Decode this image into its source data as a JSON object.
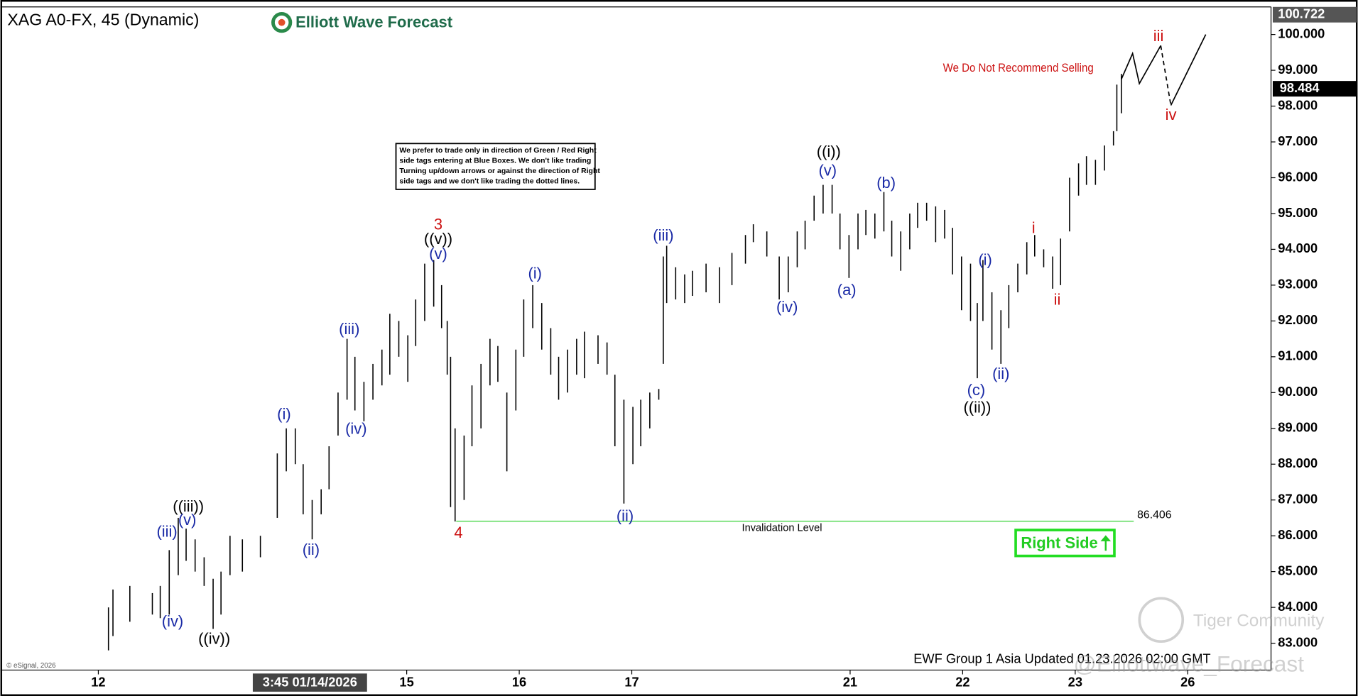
{
  "chart_data": {
    "type": "ohlc",
    "title": "XAG A0-FX, 45 (Dynamic)",
    "logo": "Elliott Wave Forecast",
    "notice": [
      "We prefer to trade only in direction of Green / Red Right",
      "side tags entering at Blue Boxes. We don't like trading",
      "Turning up/down arrows or against the direction of Right",
      "side tags and we don't like trading the dotted lines."
    ],
    "warning": "We Do Not Recommend Selling",
    "right_side": "Right Side",
    "footer": "EWF Group 1 Asia Updated 01.23.2026 02:00 GMT",
    "copyright": "© eSignal, 2026",
    "watermarks": [
      "Tiger Community",
      "@Elliottwave_Forecast"
    ],
    "color": "#000000",
    "xlim": [
      -0.87,
      10.42
    ],
    "ylim": [
      82.25,
      100.77
    ],
    "xticks": [
      {
        "value": 0,
        "label": "12"
      },
      {
        "value": 2.74,
        "label": "15"
      },
      {
        "value": 3.74,
        "label": "16"
      },
      {
        "value": 4.74,
        "label": "17"
      },
      {
        "value": 6.68,
        "label": "21"
      },
      {
        "value": 7.68,
        "label": "22"
      },
      {
        "value": 8.68,
        "label": "23"
      },
      {
        "value": 9.68,
        "label": "26"
      }
    ],
    "crosshair_x": {
      "value": 1.88,
      "label": "3:45 01/14/2026"
    },
    "yticks": [
      {
        "value": 83,
        "label": "83.000"
      },
      {
        "value": 84,
        "label": "84.000"
      },
      {
        "value": 85,
        "label": "85.000"
      },
      {
        "value": 86,
        "label": "86.000"
      },
      {
        "value": 87,
        "label": "87.000"
      },
      {
        "value": 88,
        "label": "88.000"
      },
      {
        "value": 89,
        "label": "89.000"
      },
      {
        "value": 90,
        "label": "90.000"
      },
      {
        "value": 91,
        "label": "91.000"
      },
      {
        "value": 92,
        "label": "92.000"
      },
      {
        "value": 93,
        "label": "93.000"
      },
      {
        "value": 94,
        "label": "94.000"
      },
      {
        "value": 95,
        "label": "95.000"
      },
      {
        "value": 96,
        "label": "96.000"
      },
      {
        "value": 97,
        "label": "97.000"
      },
      {
        "value": 98,
        "label": "98.000"
      },
      {
        "value": 99,
        "label": "99.000"
      },
      {
        "value": 100,
        "label": "100.000"
      }
    ],
    "high_marker": 100.722,
    "last_price": 98.484,
    "x": [
      0.09,
      0.13,
      0.28,
      0.48,
      0.55,
      0.63,
      0.71,
      0.78,
      0.86,
      0.94,
      1.02,
      1.09,
      1.17,
      1.28,
      1.44,
      1.59,
      1.67,
      1.75,
      1.82,
      1.9,
      1.98,
      2.05,
      2.13,
      2.21,
      2.28,
      2.36,
      2.44,
      2.52,
      2.59,
      2.67,
      2.75,
      2.82,
      2.9,
      2.98,
      3.05,
      3.1,
      3.13,
      3.17,
      3.25,
      3.32,
      3.4,
      3.48,
      3.55,
      3.63,
      3.71,
      3.78,
      3.86,
      3.94,
      4.02,
      4.09,
      4.17,
      4.25,
      4.32,
      4.44,
      4.52,
      4.59,
      4.67,
      4.75,
      4.82,
      4.9,
      4.98,
      5.02,
      5.05,
      5.13,
      5.21,
      5.28,
      5.4,
      5.52,
      5.63,
      5.75,
      5.82,
      5.94,
      6.05,
      6.13,
      6.21,
      6.28,
      6.36,
      6.44,
      6.52,
      6.59,
      6.67,
      6.75,
      6.82,
      6.9,
      6.98,
      7.05,
      7.13,
      7.21,
      7.28,
      7.36,
      7.44,
      7.52,
      7.59,
      7.67,
      7.75,
      7.81,
      7.86,
      7.94,
      8.02,
      8.09,
      8.17,
      8.25,
      8.32,
      8.4,
      8.48,
      8.55,
      8.63,
      8.71,
      8.78,
      8.86,
      8.94,
      9.02,
      9.05,
      9.09
    ],
    "low": [
      82.8,
      83.2,
      83.6,
      83.8,
      83.7,
      83.8,
      84.9,
      85.3,
      85.0,
      84.6,
      83.4,
      83.8,
      84.9,
      85.0,
      85.4,
      86.5,
      87.8,
      88.0,
      86.6,
      85.9,
      86.6,
      87.3,
      88.8,
      89.8,
      89.5,
      89.2,
      89.8,
      90.2,
      90.5,
      91.0,
      90.3,
      91.3,
      92.0,
      92.4,
      91.8,
      90.5,
      86.8,
      86.4,
      87.0,
      88.5,
      89.0,
      90.2,
      90.3,
      87.8,
      89.5,
      91.0,
      91.8,
      91.2,
      90.5,
      89.8,
      90.0,
      90.5,
      90.4,
      90.8,
      90.5,
      88.5,
      86.9,
      88.0,
      88.5,
      89.0,
      89.8,
      90.8,
      92.5,
      92.6,
      92.5,
      92.7,
      92.8,
      92.5,
      93.0,
      93.6,
      94.2,
      93.8,
      92.6,
      92.8,
      93.5,
      94.0,
      94.8,
      95.0,
      95.0,
      94.0,
      93.2,
      94.0,
      94.4,
      94.3,
      94.5,
      93.8,
      93.4,
      94.0,
      94.6,
      94.8,
      94.2,
      94.3,
      93.3,
      92.3,
      92.0,
      90.4,
      92.0,
      91.2,
      90.8,
      91.8,
      92.8,
      93.3,
      93.8,
      93.5,
      92.9,
      93.0,
      94.5,
      95.5,
      95.8,
      95.8,
      96.2,
      96.9,
      97.3,
      97.8
    ],
    "high": [
      84.0,
      84.5,
      84.6,
      84.4,
      84.6,
      85.6,
      86.5,
      86.2,
      85.9,
      85.4,
      84.8,
      85.0,
      86.0,
      85.9,
      86.0,
      88.3,
      89.0,
      89.0,
      88.0,
      87.0,
      87.3,
      88.5,
      90.0,
      91.5,
      91.0,
      90.3,
      90.8,
      91.2,
      92.2,
      92.0,
      91.6,
      92.6,
      93.6,
      93.7,
      93.0,
      92.0,
      91.0,
      89.0,
      88.8,
      90.2,
      90.8,
      91.5,
      91.3,
      90.0,
      91.2,
      92.6,
      93.0,
      92.5,
      91.8,
      91.0,
      91.2,
      91.5,
      91.7,
      91.6,
      91.4,
      90.5,
      89.8,
      89.6,
      89.8,
      90.0,
      90.1,
      93.8,
      94.1,
      93.5,
      93.3,
      93.4,
      93.6,
      93.5,
      93.9,
      94.4,
      94.7,
      94.5,
      93.8,
      93.8,
      94.5,
      94.8,
      95.5,
      95.8,
      95.8,
      95.0,
      94.4,
      95.0,
      95.1,
      95.0,
      95.6,
      94.8,
      94.5,
      95.0,
      95.3,
      95.3,
      95.2,
      95.1,
      94.6,
      93.8,
      93.6,
      92.5,
      93.7,
      92.8,
      92.3,
      93.0,
      93.6,
      94.2,
      94.4,
      94.0,
      93.8,
      94.3,
      96.0,
      96.4,
      96.6,
      96.5,
      96.9,
      97.3,
      98.6,
      98.9
    ],
    "projections": [
      {
        "x": [
          9.09,
          9.19,
          9.25,
          9.44
        ],
        "values": [
          98.75,
          99.47,
          98.63,
          99.69
        ],
        "dashed": false
      },
      {
        "x": [
          9.44,
          9.53
        ],
        "values": [
          99.69,
          98.02
        ],
        "dashed": true
      },
      {
        "x": [
          9.53,
          9.84
        ],
        "values": [
          98.02,
          100.0
        ],
        "dashed": false
      }
    ],
    "invalidation": {
      "label": "Invalidation Level",
      "value": 86.406,
      "x": [
        3.18,
        9.2
      ],
      "color": "#66dd66"
    },
    "waves": [
      {
        "text": "((iii))",
        "x": 0.8,
        "y": 86.79,
        "color": "#000000"
      },
      {
        "text": "(v)",
        "x": 0.79,
        "y": 86.42,
        "color": "#1a2aa6"
      },
      {
        "text": "(iii)",
        "x": 0.61,
        "y": 86.09,
        "color": "#1a2aa6"
      },
      {
        "text": "(iv)",
        "x": 0.66,
        "y": 83.58,
        "color": "#1a2aa6"
      },
      {
        "text": "((iv))",
        "x": 1.03,
        "y": 83.1,
        "color": "#000000"
      },
      {
        "text": "(i)",
        "x": 1.65,
        "y": 89.37,
        "color": "#1a2aa6"
      },
      {
        "text": "(ii)",
        "x": 1.89,
        "y": 85.58,
        "color": "#1a2aa6"
      },
      {
        "text": "(iii)",
        "x": 2.23,
        "y": 91.75,
        "color": "#1a2aa6"
      },
      {
        "text": "(iv)",
        "x": 2.29,
        "y": 88.96,
        "color": "#1a2aa6"
      },
      {
        "text": "3",
        "x": 3.02,
        "y": 94.67,
        "color": "#cc1111"
      },
      {
        "text": "((v))",
        "x": 3.02,
        "y": 94.26,
        "color": "#000000"
      },
      {
        "text": "(v)",
        "x": 3.02,
        "y": 93.85,
        "color": "#1a2aa6"
      },
      {
        "text": "4",
        "x": 3.2,
        "y": 86.06,
        "color": "#cc1111"
      },
      {
        "text": "(i)",
        "x": 3.88,
        "y": 93.3,
        "color": "#1a2aa6"
      },
      {
        "text": "(ii)",
        "x": 4.68,
        "y": 86.52,
        "color": "#1a2aa6"
      },
      {
        "text": "(iii)",
        "x": 5.02,
        "y": 94.36,
        "color": "#1a2aa6"
      },
      {
        "text": "(iv)",
        "x": 6.12,
        "y": 92.36,
        "color": "#1a2aa6"
      },
      {
        "text": "((i))",
        "x": 6.49,
        "y": 96.7,
        "color": "#000000"
      },
      {
        "text": "(v)",
        "x": 6.48,
        "y": 96.17,
        "color": "#1a2aa6"
      },
      {
        "text": "(a)",
        "x": 6.65,
        "y": 92.84,
        "color": "#1a2aa6"
      },
      {
        "text": "(b)",
        "x": 7.0,
        "y": 95.83,
        "color": "#1a2aa6"
      },
      {
        "text": "(c)",
        "x": 7.8,
        "y": 90.04,
        "color": "#1a2aa6"
      },
      {
        "text": "((ii))",
        "x": 7.81,
        "y": 89.56,
        "color": "#000000"
      },
      {
        "text": "(i)",
        "x": 7.88,
        "y": 93.68,
        "color": "#1a2aa6"
      },
      {
        "text": "(ii)",
        "x": 8.02,
        "y": 90.5,
        "color": "#1a2aa6"
      },
      {
        "text": "i",
        "x": 8.31,
        "y": 94.57,
        "color": "#cc1111"
      },
      {
        "text": "ii",
        "x": 8.52,
        "y": 92.57,
        "color": "#cc1111"
      },
      {
        "text": "iii",
        "x": 9.42,
        "y": 99.93,
        "color": "#cc1111"
      },
      {
        "text": "iv",
        "x": 9.53,
        "y": 97.73,
        "color": "#cc1111"
      }
    ]
  }
}
